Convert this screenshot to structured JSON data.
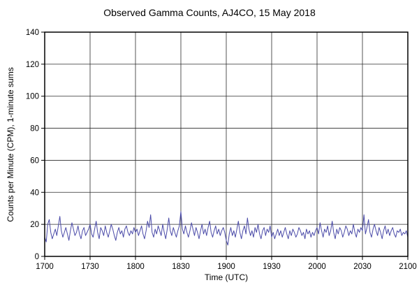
{
  "chart_data": {
    "type": "line",
    "title": "Observed Gamma Counts, AJ4CO, 15 May 2018",
    "xlabel": "Time (UTC)",
    "ylabel": "Counts per Minute (CPM), 1-minute sums",
    "xlim": [
      0,
      240
    ],
    "ylim": [
      0,
      140
    ],
    "x_tick_positions": [
      0,
      30,
      60,
      90,
      120,
      150,
      180,
      210,
      240
    ],
    "x_tick_labels": [
      "1700",
      "1730",
      "1800",
      "1830",
      "1900",
      "1930",
      "2000",
      "2030",
      "2100"
    ],
    "y_ticks": [
      0,
      20,
      40,
      60,
      80,
      100,
      120,
      140
    ],
    "grid": true,
    "legend": false,
    "colors": {
      "series": "#4a4aa8",
      "grid": "#2a2a2a",
      "border": "#000000",
      "text": "#000000"
    },
    "series": [
      {
        "name": "gamma-counts-1min",
        "values": [
          12,
          9,
          20,
          23,
          15,
          11,
          14,
          17,
          13,
          19,
          25,
          16,
          12,
          15,
          18,
          14,
          10,
          16,
          21,
          17,
          13,
          15,
          19,
          14,
          11,
          16,
          18,
          13,
          15,
          17,
          20,
          14,
          12,
          17,
          22,
          15,
          11,
          18,
          16,
          13,
          19,
          15,
          12,
          16,
          20,
          17,
          13,
          10,
          15,
          18,
          14,
          16,
          12,
          17,
          19,
          15,
          13,
          16,
          14,
          18,
          15,
          17,
          13,
          16,
          19,
          14,
          11,
          16,
          22,
          18,
          26,
          15,
          12,
          17,
          14,
          19,
          16,
          13,
          20,
          15,
          11,
          17,
          24,
          16,
          13,
          18,
          15,
          12,
          16,
          19,
          28,
          17,
          14,
          19,
          15,
          12,
          16,
          21,
          17,
          13,
          18,
          15,
          11,
          16,
          20,
          14,
          17,
          13,
          18,
          22,
          15,
          12,
          16,
          19,
          14,
          17,
          13,
          16,
          18,
          15,
          10,
          7,
          14,
          18,
          13,
          16,
          12,
          17,
          22,
          15,
          11,
          16,
          19,
          14,
          24,
          17,
          13,
          16,
          12,
          18,
          15,
          20,
          14,
          11,
          16,
          18,
          13,
          17,
          15,
          19,
          12,
          15,
          11,
          14,
          17,
          13,
          16,
          12,
          15,
          18,
          14,
          11,
          16,
          13,
          17,
          15,
          12,
          14,
          18,
          16,
          13,
          15,
          11,
          17,
          14,
          16,
          12,
          15,
          13,
          16,
          18,
          14,
          21,
          16,
          12,
          17,
          15,
          19,
          13,
          16,
          22,
          15,
          11,
          17,
          14,
          18,
          16,
          12,
          15,
          19,
          17,
          13,
          16,
          14,
          20,
          15,
          12,
          17,
          15,
          18,
          16,
          26,
          14,
          18,
          23,
          15,
          12,
          17,
          20,
          16,
          13,
          18,
          15,
          11,
          16,
          19,
          14,
          17,
          13,
          16,
          18,
          14,
          12,
          16,
          15,
          17,
          13,
          15,
          14,
          16,
          12
        ]
      }
    ]
  }
}
